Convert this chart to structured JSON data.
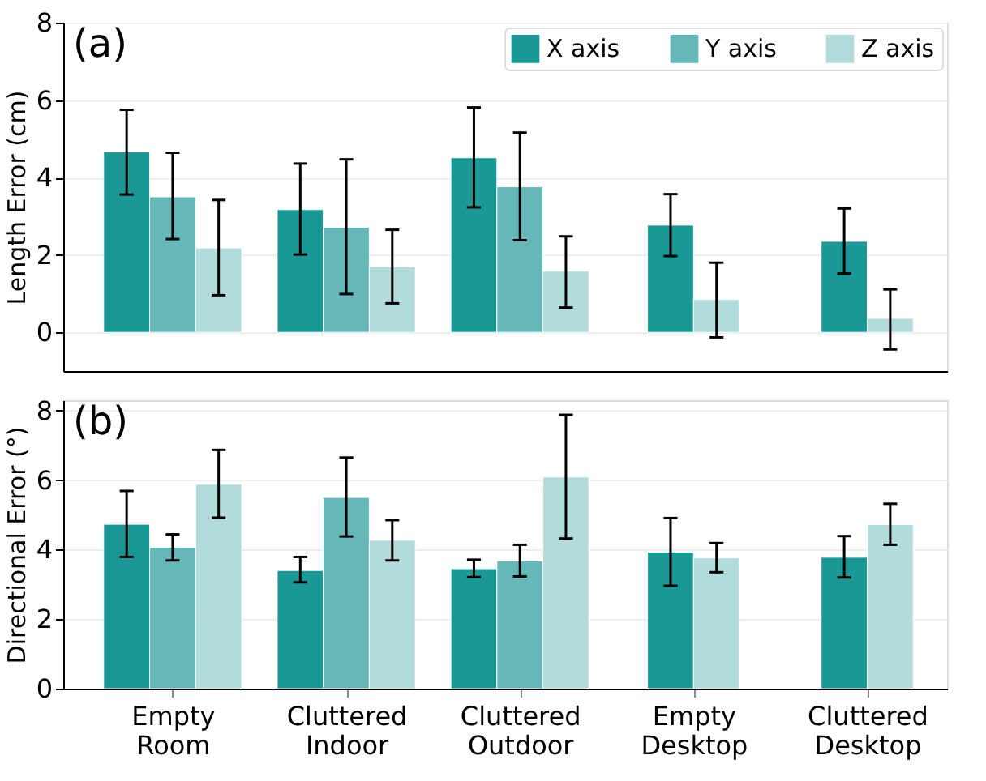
{
  "chart_data": [
    {
      "type": "bar",
      "ylabel": "Length Error (cm)",
      "categories": [
        null,
        null,
        null,
        null,
        null
      ],
      "ylim": [
        -1,
        8
      ],
      "yticks": [
        0,
        2,
        4,
        6,
        8
      ],
      "grid": "y",
      "legend": "top right",
      "tick_labels": "y",
      "annotations": [
        "(a)"
      ],
      "series": [
        {
          "name": "X axis",
          "color": "#1a9896",
          "values": [
            4.66,
            3.17,
            4.51,
            2.77,
            2.35
          ],
          "errors": [
            [
              3.56,
              5.75
            ],
            [
              2.01,
              4.36
            ],
            [
              3.23,
              5.81
            ],
            [
              1.97,
              3.57
            ],
            [
              1.52,
              3.2
            ]
          ]
        },
        {
          "name": "Y axis",
          "color": "#66b8b8",
          "values": [
            3.5,
            2.71,
            3.76,
            null,
            null
          ],
          "errors": [
            [
              2.41,
              4.64
            ],
            [
              0.99,
              4.47
            ],
            [
              2.38,
              5.16
            ],
            null,
            null
          ]
        },
        {
          "name": "Z axis",
          "color": "#b2dcdc",
          "values": [
            2.18,
            1.69,
            1.58,
            0.85,
            0.36
          ],
          "errors": [
            [
              0.96,
              3.42
            ],
            [
              0.75,
              2.65
            ],
            [
              0.64,
              2.48
            ],
            [
              -0.13,
              1.8
            ],
            [
              -0.44,
              1.11
            ]
          ]
        }
      ]
    },
    {
      "type": "bar",
      "ylabel": "Directional Error (°)",
      "categories": [
        "Empty Room",
        "Cluttered Indoor",
        "Cluttered Outdoor",
        "Empty Desktop",
        "Cluttered Desktop"
      ],
      "ylim": [
        0,
        8.3
      ],
      "yticks": [
        0,
        2,
        4,
        6,
        8
      ],
      "grid": "y",
      "annotations": [
        "(b)"
      ],
      "series": [
        {
          "color": "#1a9896",
          "values": [
            4.73,
            3.4,
            3.45,
            3.93,
            3.78
          ],
          "errors": [
            [
              3.79,
              5.69
            ],
            [
              3.06,
              3.79
            ],
            [
              3.21,
              3.71
            ],
            [
              2.96,
              4.91
            ],
            [
              3.2,
              4.39
            ]
          ]
        },
        {
          "color": "#66b8b8",
          "values": [
            4.07,
            5.5,
            3.68,
            null,
            null
          ],
          "errors": [
            [
              3.69,
              4.44
            ],
            [
              4.38,
              6.65
            ],
            [
              3.23,
              4.14
            ],
            null,
            null
          ]
        },
        {
          "color": "#b2dcdc",
          "values": [
            5.88,
            4.27,
            6.09,
            3.76,
            4.72
          ],
          "errors": [
            [
              4.92,
              6.87
            ],
            [
              3.69,
              4.85
            ],
            [
              4.32,
              7.88
            ],
            [
              3.35,
              4.19
            ],
            [
              4.14,
              5.32
            ]
          ]
        }
      ]
    }
  ]
}
